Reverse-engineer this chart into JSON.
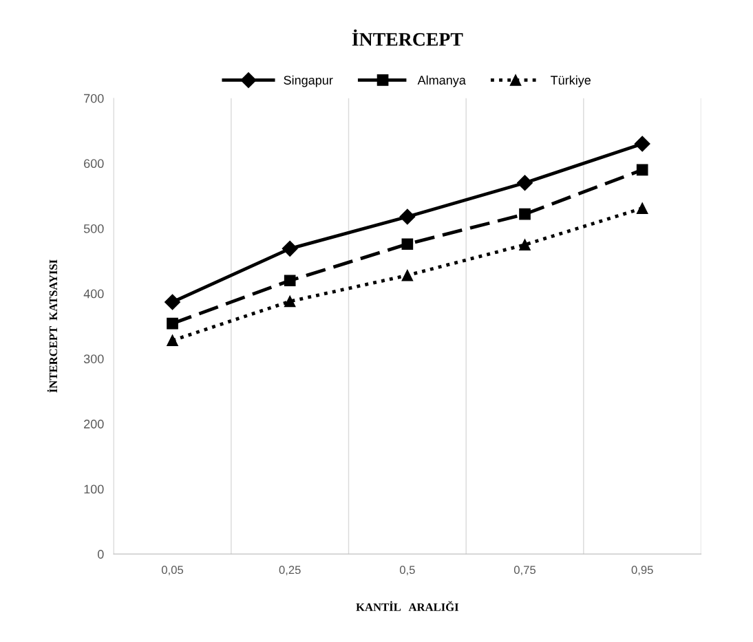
{
  "chart_data": {
    "type": "line",
    "title": "İNTERCEPT",
    "xlabel": "KANTİL   ARALIĞI",
    "ylabel": "İNTERCEPT  KATSAYISI",
    "categories": [
      "0,05",
      "0,25",
      "0,5",
      "0,75",
      "0,95"
    ],
    "series": [
      {
        "name": "Singapur",
        "color": "#000000",
        "values": [
          387,
          469,
          518,
          570,
          630
        ],
        "marker": "diamond",
        "line_style": "solid"
      },
      {
        "name": "Almanya",
        "color": "#000000",
        "values": [
          354,
          420,
          476,
          522,
          590
        ],
        "marker": "square",
        "line_style": "dashed"
      },
      {
        "name": "Türkiye",
        "color": "#000000",
        "values": [
          328,
          388,
          428,
          475,
          531
        ],
        "marker": "triangle",
        "line_style": "dotted"
      }
    ],
    "ylim": [
      0,
      700
    ],
    "yticks": [
      0,
      100,
      200,
      300,
      400,
      500,
      600,
      700
    ],
    "grid": "x",
    "legend": "top"
  }
}
